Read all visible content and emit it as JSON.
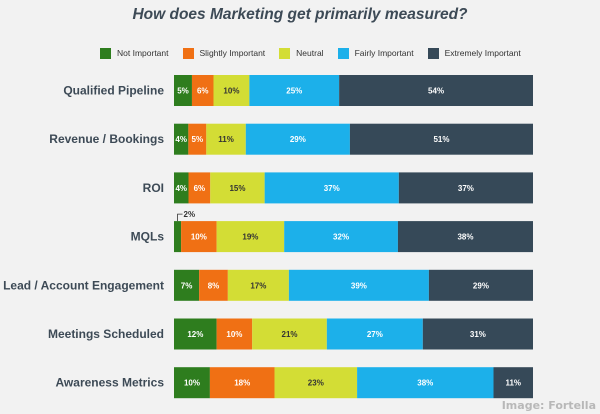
{
  "chart_data": {
    "type": "bar",
    "stacked": true,
    "orientation": "horizontal",
    "title": "How does Marketing get primarily measured?",
    "categories": [
      "Qualified Pipeline",
      "Revenue / Bookings",
      "ROI",
      "MQLs",
      "Lead / Account Engagement",
      "Meetings Scheduled",
      "Awareness Metrics"
    ],
    "series": [
      {
        "name": "Not Important",
        "color": "#2e7d1e",
        "values": [
          5,
          4,
          4,
          2,
          7,
          12,
          10
        ],
        "labels": [
          "5%",
          "4%",
          "4%",
          "",
          "7%",
          "12%",
          "10%"
        ]
      },
      {
        "name": "Slightly Important",
        "color": "#f07014",
        "values": [
          6,
          5,
          6,
          10,
          8,
          10,
          18
        ],
        "labels": [
          "6%",
          "5%",
          "6%",
          "10%",
          "8%",
          "10%",
          "18%"
        ]
      },
      {
        "name": "Neutral",
        "color": "#d3dd35",
        "values": [
          10,
          11,
          15,
          19,
          17,
          21,
          23
        ],
        "labels": [
          "10%",
          "11%",
          "15%",
          "19%",
          "17%",
          "21%",
          "23%"
        ]
      },
      {
        "name": "Fairly Important",
        "color": "#1cb0ea",
        "values": [
          25,
          29,
          37,
          32,
          39,
          27,
          38
        ],
        "labels": [
          "25%",
          "29%",
          "37%",
          "32%",
          "39%",
          "27%",
          "38%"
        ]
      },
      {
        "name": "Extremely Important",
        "color": "#364958",
        "values": [
          54,
          51,
          37,
          38,
          29,
          31,
          11
        ],
        "labels": [
          "54%",
          "51%",
          "37%",
          "38%",
          "29%",
          "31%",
          "11%"
        ]
      }
    ],
    "callouts": [
      {
        "category": "MQLs",
        "series": "Not Important",
        "text": "2%"
      }
    ],
    "xlim": [
      0,
      100
    ],
    "legend_position": "top",
    "grid": false
  },
  "credit": "Image: Fortella"
}
